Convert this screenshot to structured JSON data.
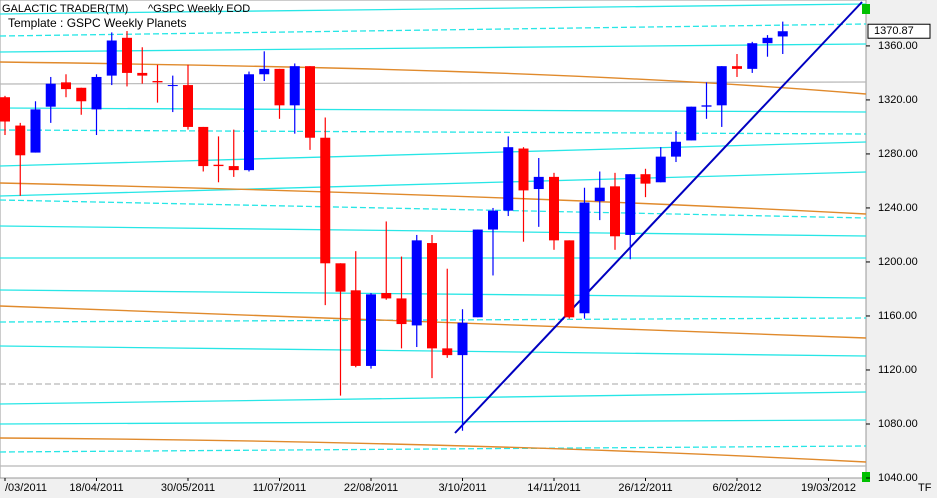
{
  "chart_data": {
    "type": "candlestick",
    "title": "GALACTIC TRADER(TM)",
    "subtitle": "^GSPC Weekly EOD",
    "template": "Template : GSPC Weekly Planets",
    "corner_label": "TF",
    "last_price": 1370.87,
    "up_color": "#0000ff",
    "down_color": "#ff0000",
    "ylim": [
      1040,
      1394
    ],
    "yticks": [
      {
        "value": 1040,
        "label": "1040.00"
      },
      {
        "value": 1080,
        "label": "1080.00"
      },
      {
        "value": 1120,
        "label": "1120.00"
      },
      {
        "value": 1160,
        "label": "1160.00"
      },
      {
        "value": 1200,
        "label": "1200.00"
      },
      {
        "value": 1240,
        "label": "1240.00"
      },
      {
        "value": 1280,
        "label": "1280.00"
      },
      {
        "value": 1320,
        "label": "1320.00"
      },
      {
        "value": 1360,
        "label": "1360.00"
      }
    ],
    "categories": [
      "/03/2011",
      null,
      null,
      null,
      null,
      null,
      "18/04/2011",
      null,
      null,
      null,
      null,
      null,
      "30/05/2011",
      null,
      null,
      null,
      null,
      null,
      "11/07/2011",
      null,
      null,
      null,
      null,
      null,
      "22/08/2011",
      null,
      null,
      null,
      null,
      null,
      "3/10/2011",
      null,
      null,
      null,
      null,
      null,
      "14/11/2011",
      null,
      null,
      null,
      null,
      null,
      "26/12/2011",
      null,
      null,
      null,
      null,
      null,
      "6/02/2012",
      null,
      null,
      null,
      null,
      null,
      "19/03/2012"
    ],
    "open": [
      1322,
      1301,
      1281,
      1315,
      1333,
      1329,
      1313,
      1338,
      1366,
      1340,
      1334,
      1331,
      1331,
      1300,
      1272,
      1271,
      1268,
      1339,
      1343,
      1316,
      1345,
      1292,
      1199,
      1179,
      1123,
      1177,
      1173,
      1153,
      1214,
      1136,
      1131,
      1159,
      1224,
      1238,
      1284,
      1254,
      1263,
      1216,
      1162,
      1245,
      1256,
      1220,
      1265,
      1259,
      1278,
      1290,
      1315,
      1316,
      1345,
      1343,
      1362,
      1367,
      null,
      null,
      null
    ],
    "high": [
      1323,
      1303,
      1319,
      1337,
      1339,
      1329,
      1339,
      1370,
      1371,
      1359,
      1346,
      1338,
      1346,
      1300,
      1293,
      1298,
      1341,
      1356,
      1343,
      1347,
      1345,
      1307,
      1199,
      1208,
      1177,
      1230,
      1204,
      1220,
      1220,
      1195,
      1165,
      1224,
      1240,
      1293,
      1285,
      1277,
      1266,
      1216,
      1255,
      1267,
      1266,
      1265,
      1269,
      1285,
      1297,
      1315,
      1333,
      1345,
      1354,
      1363,
      1368,
      1378,
      null,
      null,
      null
    ],
    "low": [
      1294,
      1249,
      1281,
      1303,
      1322,
      1309,
      1294,
      1331,
      1330,
      1332,
      1318,
      1311,
      1298,
      1267,
      1259,
      1263,
      1267,
      1334,
      1306,
      1295,
      1283,
      1168,
      1101,
      1122,
      1121,
      1172,
      1136,
      1137,
      1114,
      1129,
      1075,
      1159,
      1190,
      1234,
      1215,
      1226,
      1209,
      1158,
      1158,
      1231,
      1209,
      1202,
      1248,
      1259,
      1274,
      1290,
      1306,
      1300,
      1337,
      1340,
      1352,
      1354,
      null,
      null,
      null
    ],
    "close": [
      1304,
      1279,
      1313,
      1332,
      1328,
      1319,
      1337,
      1364,
      1340,
      1338,
      1333,
      1331,
      1300,
      1271,
      1271,
      1268,
      1339,
      1343,
      1316,
      1345,
      1292,
      1199,
      1178,
      1123,
      1176,
      1173,
      1154,
      1216,
      1136,
      1131,
      1155,
      1224,
      1238,
      1285,
      1253,
      1263,
      1216,
      1159,
      1244,
      1255,
      1219,
      1265,
      1258,
      1278,
      1289,
      1315,
      1316,
      1345,
      1343,
      1362,
      1366,
      1370.87,
      null,
      null,
      null
    ]
  }
}
